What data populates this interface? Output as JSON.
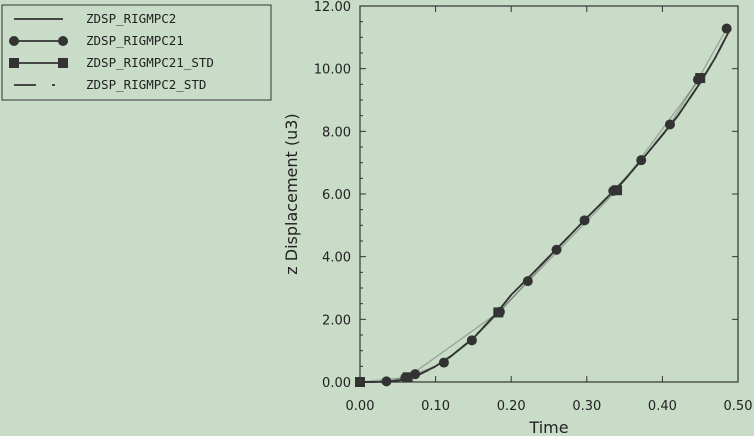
{
  "chart_data": {
    "type": "line",
    "title": "",
    "xlabel": "Time",
    "ylabel": "z Displacement (u3)",
    "xlim": [
      0.0,
      0.5
    ],
    "ylim": [
      0.0,
      12.0
    ],
    "xticks": [
      "0.00",
      "0.10",
      "0.20",
      "0.30",
      "0.40",
      "0.50"
    ],
    "yticks": [
      "0.00",
      "2.00",
      "4.00",
      "6.00",
      "8.00",
      "10.00",
      "12.00"
    ],
    "grid": false,
    "legend_position": "top-left",
    "colors": {
      "background": "#c8dcc8",
      "ink": "#333333"
    },
    "series": [
      {
        "name": "ZDSP_RIGMPC2",
        "style": "solid",
        "marker": "none",
        "x": [
          0.0,
          0.02,
          0.04,
          0.06,
          0.08,
          0.1,
          0.12,
          0.15,
          0.18,
          0.2,
          0.22,
          0.25,
          0.28,
          0.3,
          0.32,
          0.35,
          0.38,
          0.4,
          0.42,
          0.45,
          0.47,
          0.49
        ],
        "y": [
          0.0,
          0.0,
          0.02,
          0.08,
          0.26,
          0.5,
          0.82,
          1.4,
          2.18,
          2.78,
          3.26,
          4.0,
          4.74,
          5.24,
          5.72,
          6.45,
          7.3,
          7.88,
          8.48,
          9.55,
          10.35,
          11.28
        ]
      },
      {
        "name": "ZDSP_RIGMPC21",
        "style": "solid",
        "marker": "circle",
        "x": [
          0.0,
          0.035,
          0.06,
          0.073,
          0.111,
          0.148,
          0.185,
          0.222,
          0.26,
          0.297,
          0.335,
          0.372,
          0.41,
          0.447,
          0.485
        ],
        "y": [
          0.0,
          0.02,
          0.14,
          0.25,
          0.62,
          1.33,
          2.24,
          3.22,
          4.22,
          5.16,
          6.1,
          7.08,
          8.22,
          9.65,
          11.28
        ]
      },
      {
        "name": "ZDSP_RIGMPC21_STD",
        "style": "solid",
        "marker": "square",
        "x": [
          0.0,
          0.063,
          0.183,
          0.34,
          0.45
        ],
        "y": [
          0.0,
          0.15,
          2.22,
          6.12,
          9.7
        ]
      },
      {
        "name": "ZDSP_RIGMPC2_STD",
        "style": "dash-dot",
        "marker": "none",
        "x": [
          0.0,
          0.02,
          0.04,
          0.06,
          0.08,
          0.1,
          0.12,
          0.15,
          0.18,
          0.2,
          0.22,
          0.25,
          0.28,
          0.3,
          0.32,
          0.35,
          0.38,
          0.4,
          0.42,
          0.45,
          0.47,
          0.49
        ],
        "y": [
          0.0,
          0.0,
          0.02,
          0.08,
          0.26,
          0.5,
          0.82,
          1.4,
          2.18,
          2.78,
          3.26,
          4.0,
          4.74,
          5.24,
          5.72,
          6.45,
          7.3,
          7.88,
          8.48,
          9.55,
          10.35,
          11.28
        ]
      }
    ]
  }
}
